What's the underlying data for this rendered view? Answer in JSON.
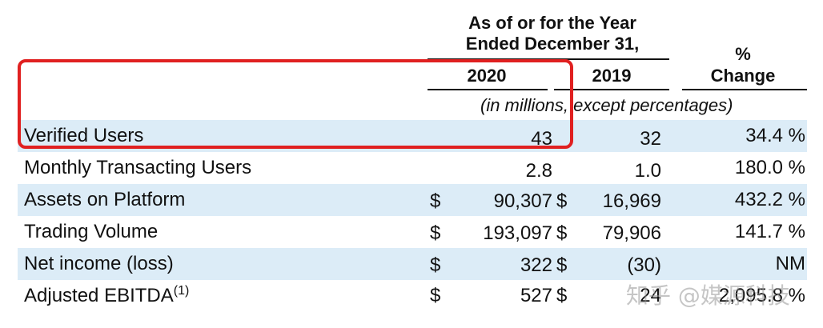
{
  "header": {
    "period_line1": "As of or for the Year",
    "period_line2": "Ended December 31,",
    "year_2020": "2020",
    "year_2019": "2019",
    "pct_line1": "%",
    "pct_line2": "Change",
    "units_note": "(in millions, except percentages)"
  },
  "rows": [
    {
      "label": "Verified Users",
      "sup": "",
      "cur2020": "",
      "v2020": "43",
      "cur2019": "",
      "v2019": "32",
      "change": "34.4 %"
    },
    {
      "label": "Monthly Transacting Users",
      "sup": "",
      "cur2020": "",
      "v2020": "2.8",
      "cur2019": "",
      "v2019": "1.0",
      "change": "180.0 %"
    },
    {
      "label": "Assets on Platform",
      "sup": "",
      "cur2020": "$",
      "v2020": "90,307",
      "cur2019": "$",
      "v2019": "16,969",
      "change": "432.2 %"
    },
    {
      "label": "Trading Volume",
      "sup": "",
      "cur2020": "$",
      "v2020": "193,097",
      "cur2019": "$",
      "v2019": "79,906",
      "change": "141.7 %"
    },
    {
      "label": "Net income (loss)",
      "sup": "",
      "cur2020": "$",
      "v2020": "322",
      "cur2019": "$",
      "v2019": "(30)",
      "change": "NM"
    },
    {
      "label": "Adjusted EBITDA",
      "sup": "(1)",
      "cur2020": "$",
      "v2020": "527",
      "cur2019": "$",
      "v2019": "24",
      "change": "2,095.8 %"
    }
  ],
  "watermark": {
    "text": "知乎 @媒源科技"
  },
  "colors": {
    "row_shade": "#dcecf7",
    "highlight_border": "#e02020"
  }
}
